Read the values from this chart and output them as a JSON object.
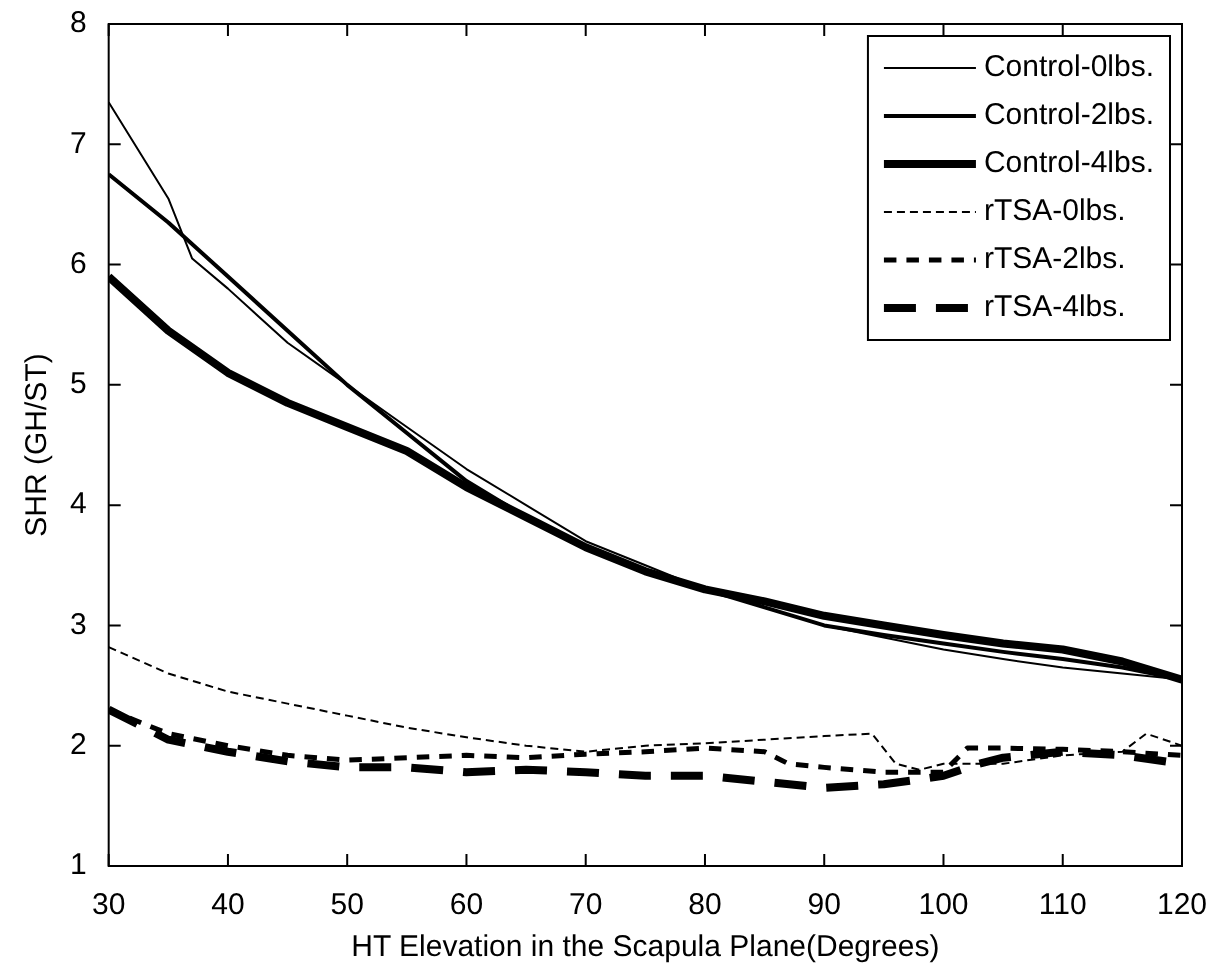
{
  "chart_data": {
    "type": "line",
    "xlabel": "HT Elevation in the Scapula Plane(Degrees)",
    "ylabel": "SHR (GH/ST)",
    "xlim": [
      30,
      120
    ],
    "xticks": [
      30,
      40,
      50,
      60,
      70,
      80,
      90,
      100,
      110,
      120
    ],
    "ylim": [
      1,
      8
    ],
    "yticks": [
      1,
      2,
      3,
      4,
      5,
      6,
      7,
      8
    ],
    "grid": false,
    "legend": "top right",
    "marker": "none",
    "series": [
      {
        "name": "Control-0lbs.",
        "color": "#000000",
        "line_style": "solid",
        "x": [
          30,
          35,
          37,
          40,
          45,
          50,
          55,
          60,
          65,
          70,
          75,
          80,
          85,
          90,
          95,
          100,
          105,
          110,
          115,
          120
        ],
        "values": [
          7.35,
          6.55,
          6.05,
          5.8,
          5.35,
          5.0,
          4.65,
          4.3,
          4.0,
          3.7,
          3.5,
          3.3,
          3.15,
          3.0,
          2.9,
          2.8,
          2.72,
          2.65,
          2.6,
          2.55
        ]
      },
      {
        "name": "Control-2lbs.",
        "color": "#000000",
        "line_style": "solid",
        "x": [
          30,
          35,
          40,
          45,
          50,
          55,
          60,
          65,
          70,
          75,
          80,
          85,
          90,
          95,
          100,
          105,
          110,
          115,
          120
        ],
        "values": [
          6.75,
          6.35,
          5.9,
          5.45,
          5.0,
          4.6,
          4.2,
          3.9,
          3.65,
          3.45,
          3.3,
          3.15,
          3.0,
          2.92,
          2.85,
          2.78,
          2.72,
          2.65,
          2.55
        ]
      },
      {
        "name": "Control-4lbs.",
        "color": "#000000",
        "line_style": "solid",
        "x": [
          30,
          35,
          40,
          45,
          50,
          55,
          60,
          65,
          70,
          75,
          80,
          85,
          90,
          95,
          100,
          105,
          110,
          115,
          120
        ],
        "values": [
          5.9,
          5.45,
          5.1,
          4.85,
          4.65,
          4.45,
          4.15,
          3.9,
          3.65,
          3.45,
          3.3,
          3.2,
          3.08,
          3.0,
          2.92,
          2.85,
          2.8,
          2.7,
          2.55
        ]
      },
      {
        "name": "rTSA-0lbs.",
        "color": "#000000",
        "line_style": "dashed",
        "x": [
          30,
          35,
          40,
          45,
          50,
          55,
          60,
          65,
          70,
          75,
          80,
          85,
          90,
          94,
          96,
          98,
          100,
          105,
          110,
          115,
          117,
          120
        ],
        "values": [
          2.82,
          2.6,
          2.45,
          2.35,
          2.25,
          2.15,
          2.07,
          2.0,
          1.95,
          2.0,
          2.02,
          2.05,
          2.08,
          2.1,
          1.85,
          1.8,
          1.85,
          1.85,
          1.92,
          1.95,
          2.1,
          2.0
        ]
      },
      {
        "name": "rTSA-2lbs.",
        "color": "#000000",
        "line_style": "dotted",
        "x": [
          30,
          35,
          40,
          45,
          50,
          55,
          60,
          65,
          70,
          75,
          80,
          85,
          87,
          90,
          95,
          100,
          102,
          105,
          110,
          115,
          120
        ],
        "values": [
          2.3,
          2.1,
          2.0,
          1.92,
          1.88,
          1.9,
          1.92,
          1.9,
          1.93,
          1.95,
          1.98,
          1.95,
          1.85,
          1.82,
          1.78,
          1.78,
          1.98,
          1.98,
          1.97,
          1.95,
          1.92
        ]
      },
      {
        "name": "rTSA-4lbs.",
        "color": "#000000",
        "line_style": "dashed",
        "x": [
          30,
          35,
          40,
          45,
          50,
          55,
          60,
          65,
          70,
          75,
          80,
          85,
          90,
          95,
          98,
          100,
          103,
          105,
          110,
          115,
          120
        ],
        "values": [
          2.3,
          2.05,
          1.95,
          1.87,
          1.82,
          1.82,
          1.78,
          1.8,
          1.78,
          1.75,
          1.75,
          1.7,
          1.65,
          1.68,
          1.72,
          1.75,
          1.85,
          1.9,
          1.95,
          1.92,
          1.85
        ]
      }
    ]
  }
}
